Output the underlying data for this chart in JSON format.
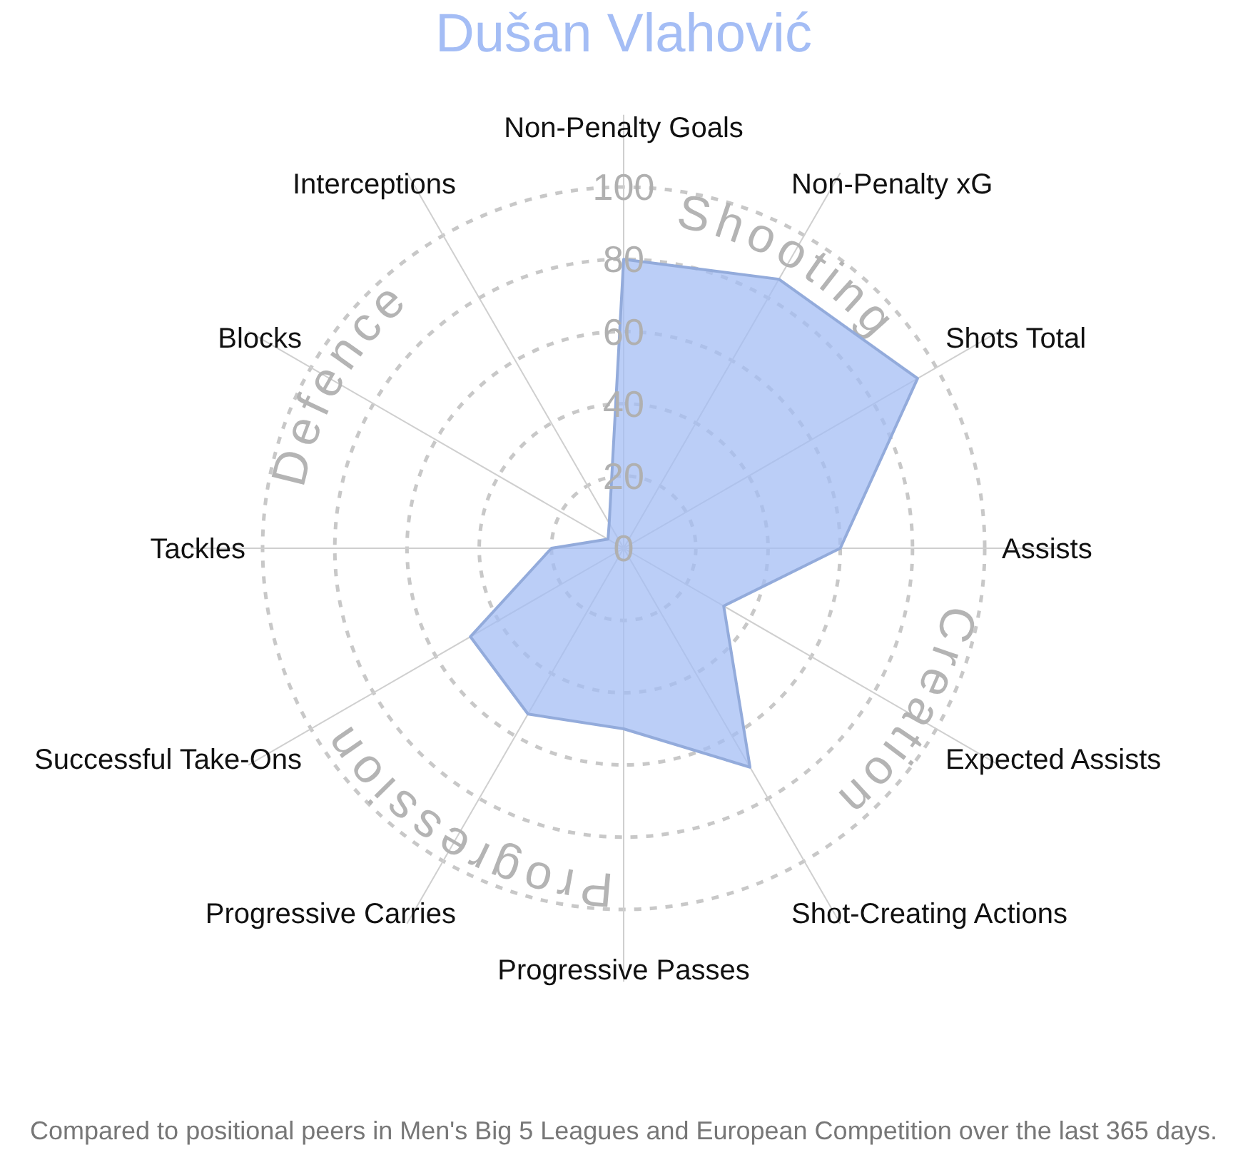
{
  "chart_data": {
    "type": "radar",
    "title": "Dušan Vlahović",
    "categories": [
      "Non-Penalty Goals",
      "Non-Penalty xG",
      "Shots Total",
      "Assists",
      "Expected Assists",
      "Shot-Creating Actions",
      "Progressive Passes",
      "Progressive Carries",
      "Successful Take-Ons",
      "Tackles",
      "Blocks",
      "Interceptions"
    ],
    "series": [
      {
        "color": "#a4bef4",
        "values": [
          80,
          86,
          94,
          60,
          32,
          70,
          50,
          53,
          49,
          20,
          5,
          8
        ]
      }
    ],
    "ylim": [
      0,
      100
    ],
    "yticks": [
      0,
      20,
      40,
      60,
      80,
      100
    ],
    "grid": true,
    "line_style": "dashed",
    "annotations": [
      "Shooting",
      "Creation",
      "Progression",
      "Defence",
      "Compared to positional peers in Men's Big 5 Leagues and European Competition over the last 365 days."
    ]
  }
}
